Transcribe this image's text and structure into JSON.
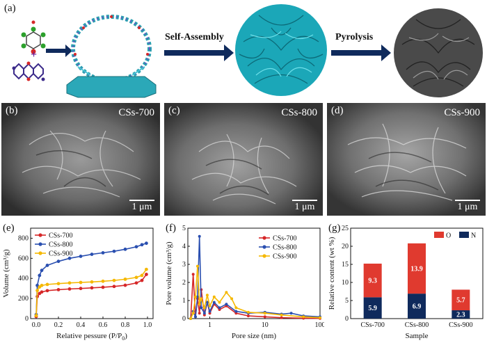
{
  "panel_a": {
    "label": "(a)",
    "arrow1_text": "Self-Assembly",
    "arrow2_text": "Pyrolysis",
    "plus": "+"
  },
  "sem_panels": [
    {
      "label": "(b)",
      "title": "CSs-700",
      "scale": "1 μm"
    },
    {
      "label": "(c)",
      "title": "CSs-800",
      "scale": "1 μm"
    },
    {
      "label": "(d)",
      "title": "CSs-900",
      "scale": "1 μm"
    }
  ],
  "colors": {
    "cs700": "#d62728",
    "cs800": "#2a4fb0",
    "cs900": "#f5b800",
    "O": "#e03a2f",
    "N": "#0f2a5c",
    "teal": "#1bb3c4"
  },
  "chart_data": [
    {
      "type": "line",
      "label": "(e)",
      "xlabel": "Relative pessure (P/P",
      "xlabel_sub": "0",
      "xlabel_end": ")",
      "ylabel": "Volume (cm³/g)",
      "xlim": [
        -0.05,
        1.05
      ],
      "ylim": [
        0,
        900
      ],
      "xticks": [
        "0.0",
        "0.2",
        "0.4",
        "0.6",
        "0.8",
        "1.0"
      ],
      "yticks": [
        "0",
        "200",
        "400",
        "600",
        "800"
      ],
      "legend": "top-left",
      "series": [
        {
          "name": "CSs-700",
          "x": [
            0,
            0.01,
            0.03,
            0.05,
            0.1,
            0.2,
            0.3,
            0.4,
            0.5,
            0.6,
            0.7,
            0.8,
            0.9,
            0.95,
            0.99
          ],
          "y": [
            20,
            220,
            250,
            265,
            278,
            288,
            295,
            300,
            306,
            312,
            320,
            332,
            355,
            380,
            440
          ]
        },
        {
          "name": "CSs-800",
          "x": [
            0,
            0.01,
            0.03,
            0.05,
            0.1,
            0.2,
            0.3,
            0.4,
            0.5,
            0.6,
            0.7,
            0.8,
            0.9,
            0.95,
            0.99
          ],
          "y": [
            40,
            330,
            430,
            480,
            530,
            570,
            600,
            620,
            640,
            655,
            670,
            690,
            715,
            735,
            750
          ]
        },
        {
          "name": "CSs-900",
          "x": [
            0,
            0.01,
            0.03,
            0.05,
            0.1,
            0.2,
            0.3,
            0.4,
            0.5,
            0.6,
            0.7,
            0.8,
            0.9,
            0.95,
            0.99
          ],
          "y": [
            30,
            280,
            315,
            330,
            340,
            348,
            355,
            360,
            365,
            372,
            380,
            392,
            410,
            430,
            490
          ]
        }
      ]
    },
    {
      "type": "line",
      "label": "(f)",
      "xlabel": "Pore size (nm)",
      "ylabel": "Pore volume (cm³/g)",
      "xscale": "log",
      "xlim": [
        0.4,
        100
      ],
      "ylim": [
        0,
        5
      ],
      "xticks": [
        "1",
        "10",
        "100"
      ],
      "yticks": [
        "0",
        "1",
        "2",
        "3",
        "4",
        "5"
      ],
      "legend": "top-right",
      "series": [
        {
          "name": "CSs-700",
          "x": [
            0.45,
            0.5,
            0.55,
            0.6,
            0.65,
            0.7,
            0.8,
            0.9,
            1.0,
            1.2,
            1.5,
            2,
            3,
            5,
            10,
            20,
            50,
            100
          ],
          "y": [
            0,
            2.45,
            0.1,
            1.1,
            0.3,
            1.6,
            0.2,
            0.9,
            0.3,
            0.8,
            0.5,
            0.7,
            0.3,
            0.15,
            0.1,
            0.05,
            0.02,
            0.01
          ]
        },
        {
          "name": "CSs-800",
          "x": [
            0.45,
            0.5,
            0.55,
            0.6,
            0.65,
            0.7,
            0.8,
            0.9,
            1.0,
            1.2,
            1.5,
            2,
            3,
            5,
            10,
            20,
            30,
            50,
            100
          ],
          "y": [
            0,
            0.4,
            0.1,
            1.2,
            4.55,
            0.6,
            0.3,
            0.9,
            0.4,
            0.9,
            0.6,
            0.8,
            0.4,
            0.3,
            0.35,
            0.25,
            0.3,
            0.15,
            0.1
          ]
        },
        {
          "name": "CSs-900",
          "x": [
            0.45,
            0.5,
            0.55,
            0.6,
            0.65,
            0.7,
            0.8,
            0.9,
            1.0,
            1.2,
            1.5,
            2,
            2.5,
            3,
            5,
            10,
            20,
            50,
            100
          ],
          "y": [
            0,
            0.3,
            1.2,
            2.9,
            0.8,
            1.1,
            0.6,
            1.3,
            0.7,
            1.2,
            0.9,
            1.45,
            1.1,
            0.6,
            0.35,
            0.3,
            0.2,
            0.1,
            0.05
          ]
        }
      ]
    },
    {
      "type": "bar",
      "stacked": true,
      "label": "(g)",
      "xlabel": "Sample",
      "ylabel": "Relative content (wt %)",
      "categories": [
        "CSs-700",
        "CSs-800",
        "CSs-900"
      ],
      "ylim": [
        0,
        25
      ],
      "yticks": [
        "0",
        "5",
        "10",
        "15",
        "20",
        "25"
      ],
      "legend": "top-right",
      "series": [
        {
          "name": "N",
          "values": [
            5.9,
            6.9,
            2.3
          ]
        },
        {
          "name": "O",
          "values": [
            9.3,
            13.9,
            5.7
          ]
        }
      ]
    }
  ]
}
